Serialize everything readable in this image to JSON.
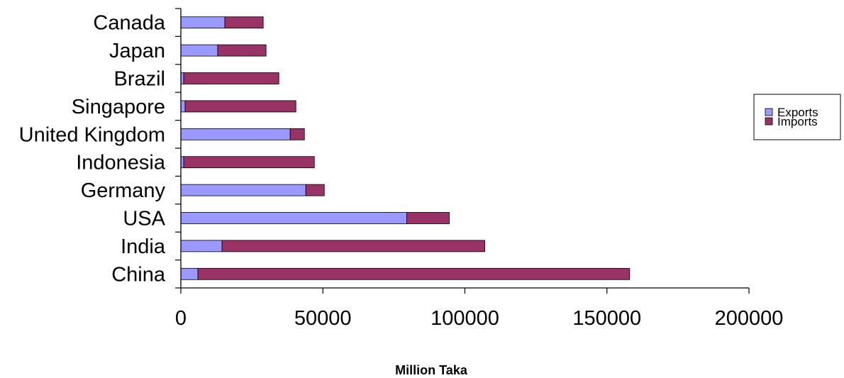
{
  "chart_data": {
    "type": "bar",
    "orientation": "horizontal",
    "stacked": true,
    "categories": [
      "China",
      "India",
      "USA",
      "Germany",
      "Indonesia",
      "United Kingdom",
      "Singapore",
      "Brazil",
      "Japan",
      "Canada"
    ],
    "series": [
      {
        "name": "Exports",
        "color": "#9999ff",
        "values": [
          6000,
          14500,
          79500,
          44000,
          1000,
          38500,
          1500,
          1000,
          13000,
          15500
        ]
      },
      {
        "name": "Imports",
        "color": "#993366",
        "values": [
          152000,
          92500,
          15000,
          6500,
          46000,
          5000,
          39000,
          33500,
          17000,
          13500
        ]
      }
    ],
    "xlabel": "Million Taka",
    "ylabel": "",
    "xlim": [
      0,
      200000
    ],
    "xticks": [
      0,
      50000,
      100000,
      150000,
      200000
    ],
    "xtick_labels": [
      "0",
      "50000",
      "100000",
      "150000",
      "200000"
    ],
    "grid": false,
    "legend_position": "right"
  }
}
